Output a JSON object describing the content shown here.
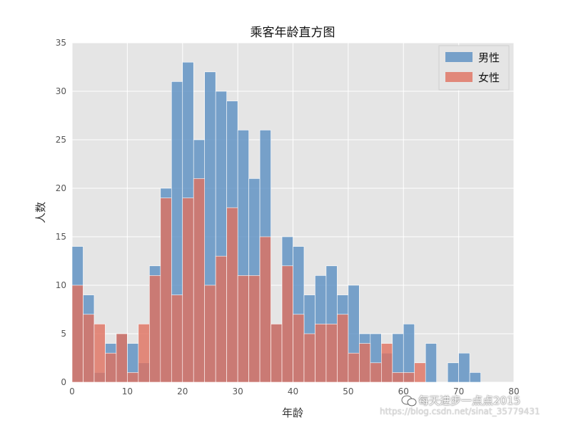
{
  "chart_data": {
    "type": "bar",
    "title": "乘客年龄直方图",
    "xlabel": "年龄",
    "ylabel": "人数",
    "xlim": [
      0,
      80
    ],
    "ylim": [
      0,
      35
    ],
    "xticks": [
      0,
      10,
      20,
      30,
      40,
      50,
      60,
      70,
      80
    ],
    "yticks": [
      0,
      5,
      10,
      15,
      20,
      25,
      30,
      35
    ],
    "grid": true,
    "legend_position": "top-right",
    "bin_width": 2,
    "bin_start": 0,
    "series": [
      {
        "name": "男性",
        "color": "#5a8fc2",
        "values": [
          14,
          9,
          1,
          4,
          5,
          4,
          2,
          12,
          20,
          31,
          33,
          25,
          32,
          30,
          29,
          26,
          21,
          26,
          6,
          15,
          14,
          9,
          11,
          12,
          9,
          10,
          5,
          5,
          3,
          5,
          6,
          0,
          4,
          0,
          2,
          3,
          1
        ]
      },
      {
        "name": "女性",
        "color": "#e0705f",
        "values": [
          10,
          7,
          6,
          3,
          5,
          1,
          6,
          11,
          19,
          9,
          19,
          21,
          10,
          13,
          18,
          11,
          11,
          15,
          6,
          12,
          7,
          5,
          6,
          6,
          7,
          3,
          4,
          2,
          4,
          1,
          1,
          2,
          0,
          0,
          0,
          0,
          0
        ]
      }
    ]
  },
  "watermark": {
    "main": "每天进步一点点2015",
    "url": "https://blog.csdn.net/sinat_35779431"
  }
}
